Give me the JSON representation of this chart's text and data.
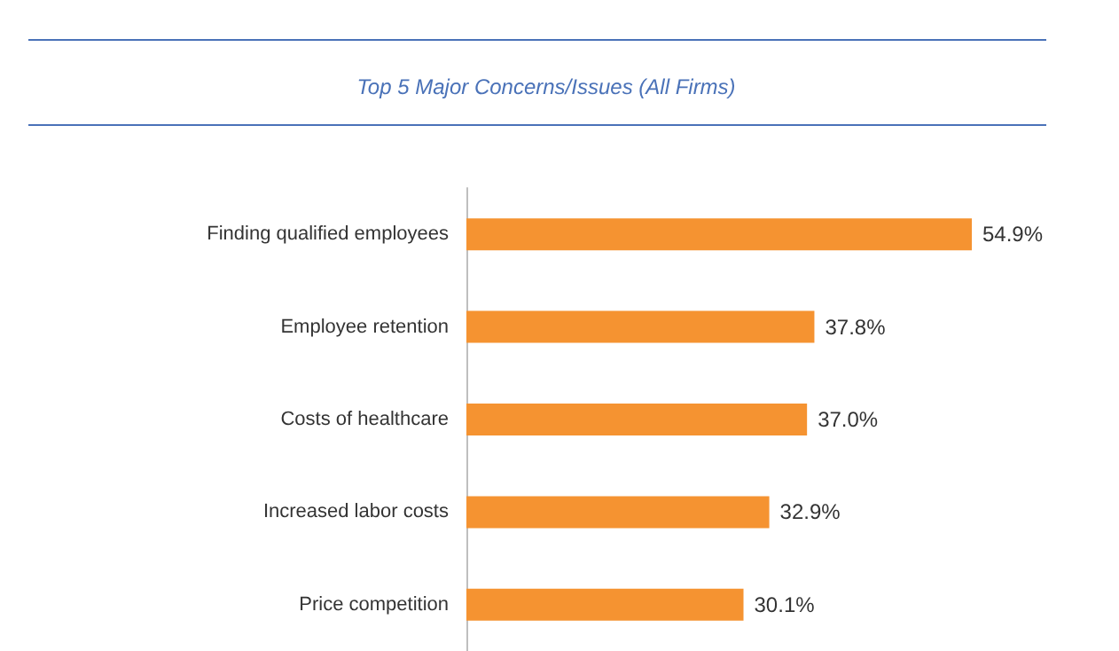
{
  "chart_data": {
    "type": "bar",
    "orientation": "horizontal",
    "title": "Top 5 Major Concerns/Issues (All Firms)",
    "categories": [
      "Finding qualified employees",
      "Employee retention",
      "Costs of healthcare",
      "Increased labor costs",
      "Price competition"
    ],
    "values": [
      54.9,
      37.8,
      37.0,
      32.9,
      30.1
    ],
    "value_labels": [
      "54.9%",
      "37.8%",
      "37.0%",
      "32.9%",
      "30.1%"
    ],
    "color": "#f59331"
  }
}
